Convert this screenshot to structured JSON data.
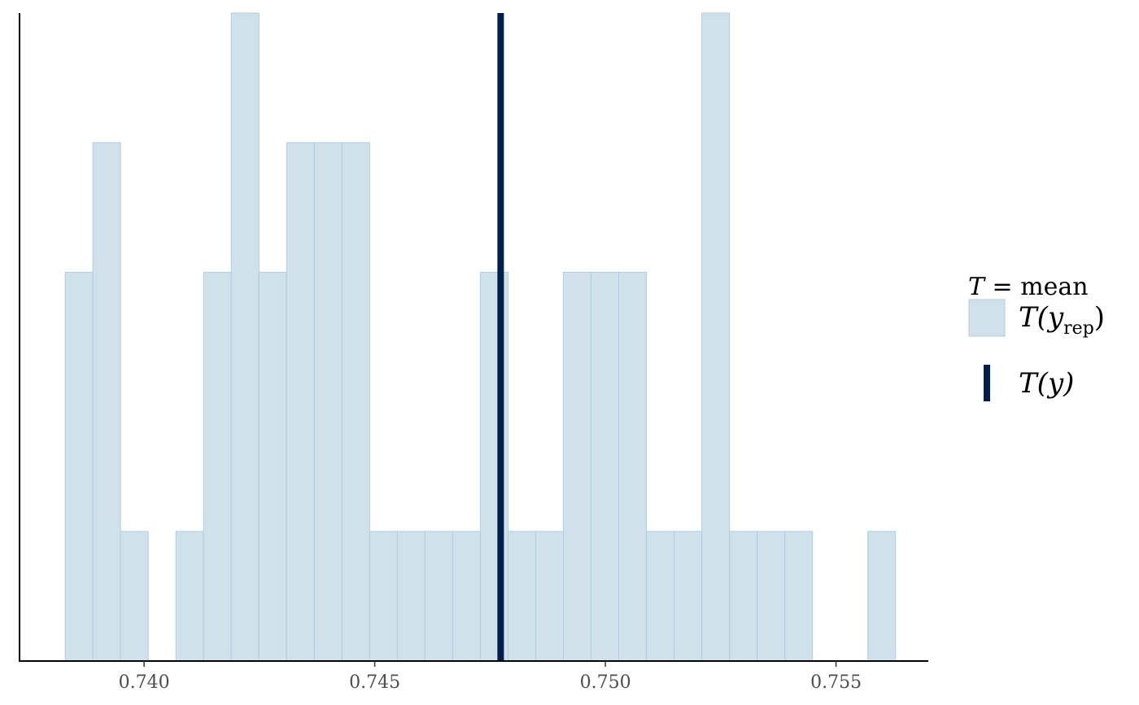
{
  "chart_data": {
    "type": "bar",
    "subtype": "histogram",
    "bins": [
      {
        "x0": 0.73829,
        "x1": 0.73889,
        "count": 3
      },
      {
        "x0": 0.73889,
        "x1": 0.73949,
        "count": 4
      },
      {
        "x0": 0.73949,
        "x1": 0.74009,
        "count": 1
      },
      {
        "x0": 0.74009,
        "x1": 0.74069,
        "count": 0
      },
      {
        "x0": 0.74069,
        "x1": 0.74129,
        "count": 1
      },
      {
        "x0": 0.74129,
        "x1": 0.74189,
        "count": 3
      },
      {
        "x0": 0.74189,
        "x1": 0.74249,
        "count": 5
      },
      {
        "x0": 0.74249,
        "x1": 0.74309,
        "count": 3
      },
      {
        "x0": 0.74309,
        "x1": 0.74369,
        "count": 4
      },
      {
        "x0": 0.74369,
        "x1": 0.74429,
        "count": 4
      },
      {
        "x0": 0.74429,
        "x1": 0.74489,
        "count": 4
      },
      {
        "x0": 0.74489,
        "x1": 0.74549,
        "count": 1
      },
      {
        "x0": 0.74549,
        "x1": 0.74609,
        "count": 1
      },
      {
        "x0": 0.74609,
        "x1": 0.74669,
        "count": 1
      },
      {
        "x0": 0.74669,
        "x1": 0.74729,
        "count": 1
      },
      {
        "x0": 0.74729,
        "x1": 0.74789,
        "count": 3
      },
      {
        "x0": 0.74789,
        "x1": 0.74849,
        "count": 1
      },
      {
        "x0": 0.74849,
        "x1": 0.74909,
        "count": 1
      },
      {
        "x0": 0.74909,
        "x1": 0.74969,
        "count": 3
      },
      {
        "x0": 0.74969,
        "x1": 0.75029,
        "count": 3
      },
      {
        "x0": 0.75029,
        "x1": 0.75089,
        "count": 3
      },
      {
        "x0": 0.75089,
        "x1": 0.75149,
        "count": 1
      },
      {
        "x0": 0.75149,
        "x1": 0.75209,
        "count": 1
      },
      {
        "x0": 0.75209,
        "x1": 0.75269,
        "count": 5
      },
      {
        "x0": 0.75269,
        "x1": 0.75329,
        "count": 1
      },
      {
        "x0": 0.75329,
        "x1": 0.75389,
        "count": 1
      },
      {
        "x0": 0.75389,
        "x1": 0.75449,
        "count": 1
      },
      {
        "x0": 0.75449,
        "x1": 0.75509,
        "count": 0
      },
      {
        "x0": 0.75509,
        "x1": 0.75569,
        "count": 0
      },
      {
        "x0": 0.75569,
        "x1": 0.75629,
        "count": 1
      }
    ],
    "observed_value": 0.74773,
    "xlim": [
      0.7373,
      0.757
    ],
    "ylim": [
      0,
      5
    ],
    "x_ticks": [
      0.74,
      0.745,
      0.75,
      0.755
    ],
    "x_tick_labels": [
      "0.740",
      "0.745",
      "0.750",
      "0.755"
    ],
    "y_axis_labels": "none",
    "grid": false,
    "legend_position": "right",
    "legend": {
      "title_var": "T",
      "title_eq": " = mean",
      "rep_label_main": "T(y",
      "rep_label_sub": "rep",
      "rep_label_close": ")",
      "obs_label": "T(y)"
    },
    "colors": {
      "bar_fill": "#d1e1ec",
      "bar_stroke": "#b3cde0",
      "observed_line": "#011f4b",
      "axis": "#000000"
    }
  }
}
